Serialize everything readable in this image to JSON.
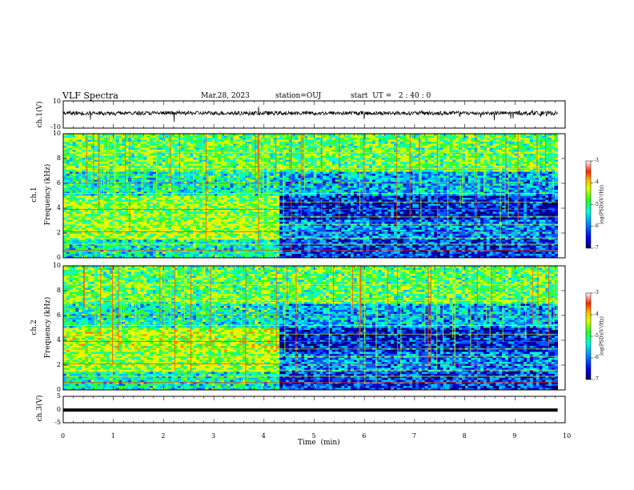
{
  "header": {
    "title": "VLF Spectra",
    "date": "Mar.28, 2023",
    "station": "station=OUJ",
    "start_ut": "start  UT =   2 : 40 : 0"
  },
  "colors": {
    "spectrogram_scale": [
      "#000066",
      "#0000cc",
      "#0055ff",
      "#00bbff",
      "#00ffcc",
      "#33ff33",
      "#ccff00",
      "#ffee00",
      "#ff8800",
      "#ff0000",
      "#ffffff"
    ],
    "waveform": "#000000",
    "axes": "#000000"
  },
  "chart_data": [
    {
      "type": "line",
      "panel": "ch1_waveform",
      "ylabel": "ch.1(V)",
      "yticks": [
        "10",
        "-10"
      ],
      "ylim": [
        -10,
        10
      ],
      "xlim": [
        0,
        10
      ],
      "description_values": {
        "baseline_v": 1,
        "noise_amplitude_v": 1.5
      }
    },
    {
      "type": "heatmap",
      "panel": "ch1_spectrogram",
      "ylabel": "ch.1\nFrequency (kHz)",
      "ylabel_line1": "ch.1",
      "ylabel_line2": "Frequency (kHz)",
      "yticks": [
        "0",
        "2",
        "4",
        "6",
        "8",
        "10"
      ],
      "ylim": [
        0,
        10
      ],
      "xlim": [
        0,
        9.85
      ],
      "colorbar": {
        "label": "log(PSD)(V²/Hz)",
        "ticks": [
          "-3",
          "-4",
          "-5",
          "-6",
          "-7"
        ],
        "range": [
          -7,
          -3
        ]
      },
      "regime_change_min": 4.3
    },
    {
      "type": "heatmap",
      "panel": "ch2_spectrogram",
      "ylabel_line1": "ch.2",
      "ylabel_line2": "Frequency (kHz)",
      "yticks": [
        "0",
        "2",
        "4",
        "6",
        "8",
        "10"
      ],
      "ylim": [
        0,
        10
      ],
      "xlim": [
        0,
        9.85
      ],
      "colorbar": {
        "label": "log(PSD)(V²/Hz)",
        "ticks": [
          "-3",
          "-4",
          "-5",
          "-6",
          "-7"
        ],
        "range": [
          -7,
          -3
        ]
      },
      "regime_change_min": 4.3
    },
    {
      "type": "line",
      "panel": "ch3_waveform",
      "ylabel": "ch.3(V)",
      "yticks": [
        "5",
        "0",
        "-5"
      ],
      "ylim": [
        -5,
        5
      ],
      "xlim": [
        0,
        10
      ],
      "level_v": -0.2
    }
  ],
  "xaxis": {
    "label": "Time  (min)",
    "ticks": [
      "0",
      "1",
      "2",
      "3",
      "4",
      "5",
      "6",
      "7",
      "8",
      "9",
      "10"
    ],
    "range": [
      0,
      10
    ]
  }
}
